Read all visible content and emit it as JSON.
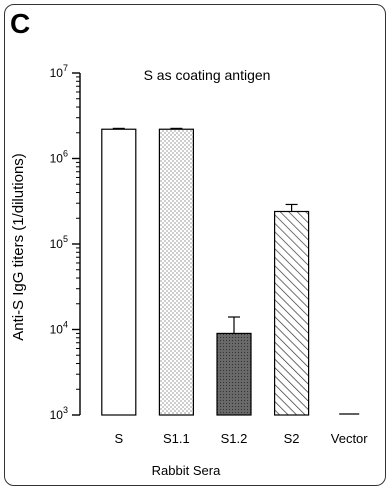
{
  "panel_label": "C",
  "chart_data": {
    "type": "bar",
    "title": "S as coating antigen",
    "xlabel": "Rabbit Sera",
    "ylabel": "Anti-S IgG titers (1/dilutions)",
    "yscale": "log",
    "ylim": [
      1000,
      10000000
    ],
    "y_ticks": [
      {
        "base": "10",
        "exp": "3",
        "value": 1000
      },
      {
        "base": "10",
        "exp": "4",
        "value": 10000
      },
      {
        "base": "10",
        "exp": "5",
        "value": 100000
      },
      {
        "base": "10",
        "exp": "6",
        "value": 1000000
      },
      {
        "base": "10",
        "exp": "7",
        "value": 10000000
      }
    ],
    "categories": [
      "S",
      "S1.1",
      "S1.2",
      "S2",
      "Vector"
    ],
    "values": [
      2200000,
      2200000,
      9000,
      240000,
      1000
    ],
    "error_upper": [
      2250000,
      2250000,
      14000,
      290000,
      1000
    ],
    "fills": [
      "open",
      "dotted",
      "dark-gray",
      "hatched",
      "none"
    ],
    "grid": false,
    "legend": "none"
  }
}
